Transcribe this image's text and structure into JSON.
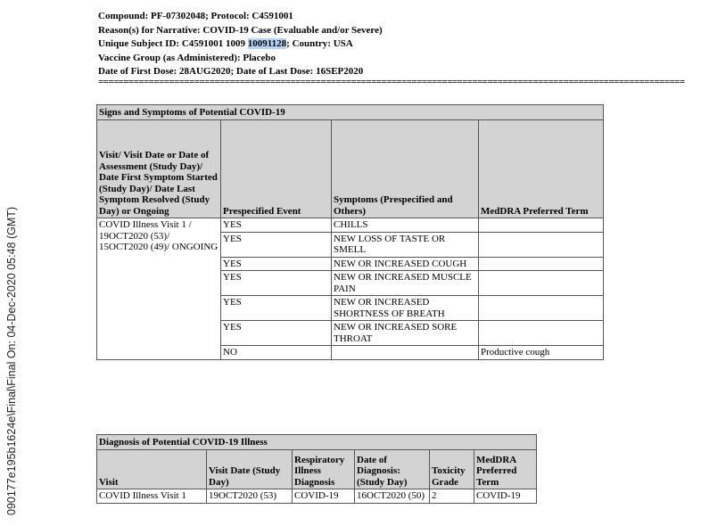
{
  "header": {
    "line1": "Compound: PF-07302048; Protocol: C4591001",
    "line2": "Reason(s) for Narrative: COVID-19 Case (Evaluable and/or Severe)",
    "line3_prefix": "Unique Subject ID: C4591001 1009 ",
    "line3_highlight": "10091128",
    "line3_suffix": "; Country: USA",
    "line4": "Vaccine Group (as Administered): Placebo",
    "line5": "Date of First Dose: 28AUG2020; Date of Last Dose: 16SEP2020",
    "separator": "===================================================================================================================="
  },
  "side_text": "090177e195b1624e\\Final\\Final On: 04-Dec-2020 05:48 (GMT)",
  "symptoms_table": {
    "title": "Signs and Symptoms of Potential COVID-19",
    "columns": [
      "Visit/ Visit Date or Date of Assessment (Study Day)/ Date First Symptom Started (Study Day)/ Date Last Symptom Resolved (Study Day) or Ongoing",
      "Prespecified Event",
      "Symptoms (Prespecified and Others)",
      "MedDRA Preferred Term"
    ],
    "visit": "COVID Illness Visit 1 / 19OCT2020 (53)/ 15OCT2020 (49)/ ONGOING",
    "rows": [
      {
        "event": "YES",
        "symptom": "CHILLS",
        "term": ""
      },
      {
        "event": "YES",
        "symptom": "NEW LOSS OF TASTE OR SMELL",
        "term": ""
      },
      {
        "event": "YES",
        "symptom": "NEW OR INCREASED COUGH",
        "term": ""
      },
      {
        "event": "YES",
        "symptom": "NEW OR INCREASED MUSCLE PAIN",
        "term": ""
      },
      {
        "event": "YES",
        "symptom": "NEW OR INCREASED SHORTNESS OF BREATH",
        "term": ""
      },
      {
        "event": "YES",
        "symptom": "NEW OR INCREASED SORE THROAT",
        "term": ""
      },
      {
        "event": "NO",
        "symptom": "",
        "term": "Productive cough"
      }
    ]
  },
  "diagnosis_table": {
    "title": "Diagnosis of Potential COVID-19 Illness",
    "columns": [
      "Visit",
      "Visit Date (Study Day)",
      "Respiratory Illness Diagnosis",
      "Date of Diagnosis: (Study Day)",
      "Toxicity Grade",
      "MedDRA Preferred Term"
    ],
    "rows": [
      [
        "COVID Illness Visit 1",
        "19OCT2020 (53)",
        "COVID-19",
        "16OCT2020 (50)",
        "2",
        "COVID-19"
      ]
    ]
  }
}
